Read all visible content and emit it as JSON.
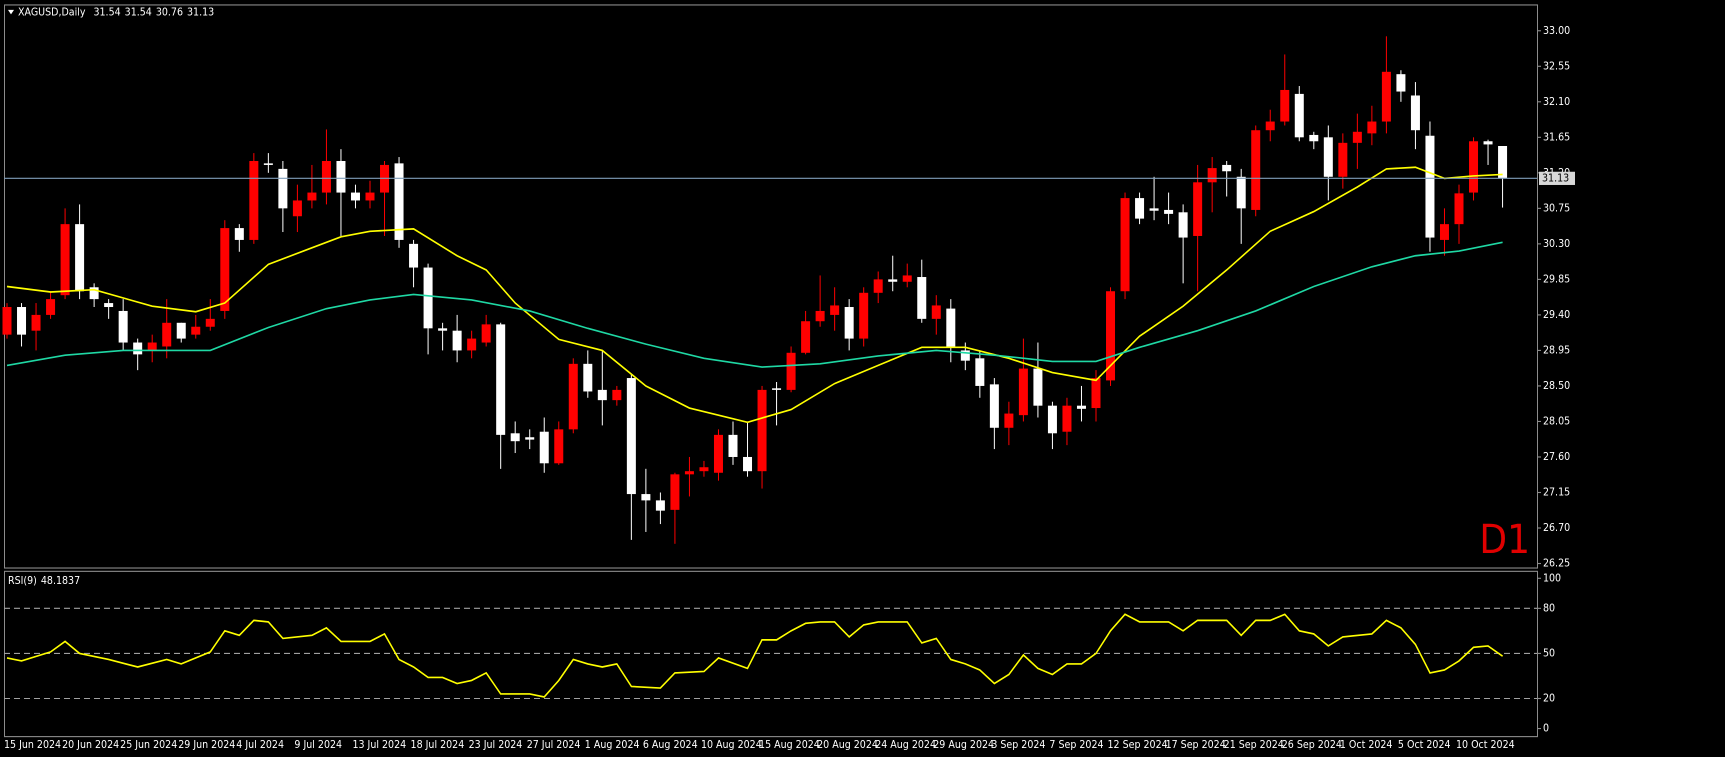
{
  "chart_data": [
    {
      "type": "candlestick",
      "title": "XAGUSD,Daily",
      "header_values": [
        31.54,
        31.54,
        30.76,
        31.13
      ],
      "watermark": "D1",
      "categories": [
        "15 Jun 2024",
        null,
        null,
        null,
        "20 Jun 2024",
        null,
        null,
        null,
        "25 Jun 2024",
        null,
        null,
        null,
        "29 Jun 2024",
        null,
        null,
        null,
        "4 Jul 2024",
        null,
        null,
        null,
        "9 Jul 2024",
        null,
        null,
        null,
        "13 Jul 2024",
        null,
        null,
        null,
        "18 Jul 2024",
        null,
        null,
        null,
        "23 Jul 2024",
        null,
        null,
        null,
        "27 Jul 2024",
        null,
        null,
        null,
        "1 Aug 2024",
        null,
        null,
        null,
        "6 Aug 2024",
        null,
        null,
        null,
        "10 Aug 2024",
        null,
        null,
        null,
        "15 Aug 2024",
        null,
        null,
        null,
        "20 Aug 2024",
        null,
        null,
        null,
        "24 Aug 2024",
        null,
        null,
        null,
        "29 Aug 2024",
        null,
        null,
        null,
        "3 Sep 2024",
        null,
        null,
        null,
        "7 Sep 2024",
        null,
        null,
        null,
        "12 Sep 2024",
        null,
        null,
        null,
        "17 Sep 2024",
        null,
        null,
        null,
        "21 Sep 2024",
        null,
        null,
        null,
        "26 Sep 2024",
        null,
        null,
        null,
        "1 Oct 2024",
        null,
        null,
        null,
        "5 Oct 2024",
        null,
        null,
        null,
        "10 Oct 2024",
        null,
        null,
        null
      ],
      "open": [
        29.15,
        29.5,
        29.2,
        29.4,
        29.65,
        30.55,
        29.75,
        29.55,
        29.45,
        29.05,
        28.95,
        29.0,
        29.3,
        29.15,
        29.25,
        29.45,
        30.5,
        30.35,
        31.32,
        31.25,
        30.65,
        30.85,
        30.95,
        31.35,
        30.95,
        30.85,
        30.95,
        31.32,
        30.3,
        30.0,
        29.23,
        29.2,
        28.95,
        29.05,
        29.28,
        27.9,
        27.85,
        27.92,
        27.52,
        27.95,
        28.78,
        28.45,
        28.32,
        28.6,
        27.13,
        27.05,
        26.93,
        27.38,
        27.42,
        27.4,
        27.88,
        27.6,
        27.42,
        28.47,
        28.45,
        28.92,
        29.32,
        29.4,
        29.5,
        29.1,
        29.68,
        29.85,
        29.82,
        29.88,
        29.35,
        29.48,
        28.95,
        28.85,
        28.52,
        27.97,
        28.13,
        28.72,
        28.25,
        27.92,
        28.25,
        28.22,
        28.57,
        29.7,
        30.88,
        30.75,
        30.73,
        30.7,
        30.4,
        31.08,
        31.3,
        31.15,
        30.73,
        31.74,
        31.85,
        32.2,
        31.68,
        31.65,
        31.15,
        31.58,
        31.7,
        31.85,
        32.45,
        32.18,
        31.67,
        30.35,
        30.55,
        30.95,
        31.6,
        31.54
      ],
      "high": [
        29.55,
        29.55,
        29.55,
        29.7,
        30.75,
        30.8,
        29.8,
        29.6,
        29.6,
        29.1,
        29.15,
        29.6,
        29.3,
        29.4,
        29.6,
        30.6,
        30.55,
        31.45,
        31.45,
        31.35,
        31.05,
        31.3,
        31.75,
        31.5,
        31.05,
        31.1,
        31.35,
        31.4,
        30.35,
        30.05,
        29.3,
        29.4,
        29.2,
        29.4,
        29.3,
        28.05,
        27.95,
        28.1,
        28.05,
        28.85,
        28.95,
        28.95,
        28.5,
        28.65,
        27.45,
        27.15,
        27.4,
        27.6,
        27.55,
        27.95,
        28.05,
        28.05,
        28.5,
        28.55,
        29.0,
        29.45,
        29.9,
        29.75,
        29.6,
        29.75,
        29.95,
        30.15,
        30.05,
        30.1,
        29.65,
        29.6,
        29.05,
        28.95,
        28.6,
        28.3,
        29.1,
        29.05,
        28.3,
        28.35,
        28.5,
        28.7,
        29.75,
        30.95,
        30.95,
        31.15,
        30.95,
        30.8,
        31.3,
        31.4,
        31.35,
        31.25,
        31.8,
        32.0,
        32.7,
        32.3,
        31.72,
        31.8,
        31.7,
        31.95,
        32.05,
        32.93,
        32.5,
        32.35,
        31.85,
        30.75,
        31.05,
        31.65,
        31.62,
        31.54
      ],
      "low": [
        29.1,
        29.0,
        28.95,
        29.35,
        29.6,
        29.6,
        29.5,
        29.35,
        28.95,
        28.7,
        28.8,
        28.85,
        29.05,
        29.1,
        29.2,
        29.35,
        30.2,
        30.3,
        31.2,
        30.45,
        30.45,
        30.75,
        30.8,
        30.4,
        30.75,
        30.75,
        30.4,
        30.25,
        29.75,
        28.9,
        28.95,
        28.8,
        28.85,
        29.0,
        27.45,
        27.65,
        27.7,
        27.4,
        27.5,
        27.9,
        28.35,
        28.0,
        28.25,
        26.55,
        26.65,
        26.75,
        26.5,
        27.1,
        27.35,
        27.3,
        27.5,
        27.35,
        27.2,
        28.0,
        28.42,
        28.9,
        29.25,
        29.2,
        28.95,
        29.0,
        29.55,
        29.7,
        29.75,
        29.3,
        29.15,
        28.8,
        28.7,
        28.35,
        27.7,
        27.75,
        28.05,
        28.1,
        27.7,
        27.75,
        28.05,
        28.05,
        28.5,
        29.6,
        30.55,
        30.6,
        30.55,
        29.8,
        29.7,
        30.7,
        30.9,
        30.3,
        30.65,
        31.6,
        31.8,
        31.6,
        31.5,
        30.85,
        31.0,
        31.25,
        31.55,
        31.7,
        32.1,
        31.5,
        30.2,
        30.15,
        30.3,
        30.85,
        31.3,
        30.76
      ],
      "close": [
        29.5,
        29.15,
        29.4,
        29.6,
        30.55,
        29.7,
        29.6,
        29.5,
        29.05,
        28.9,
        29.05,
        29.3,
        29.1,
        29.25,
        29.35,
        30.5,
        30.35,
        31.35,
        31.3,
        30.75,
        30.85,
        30.95,
        31.35,
        30.95,
        30.85,
        30.95,
        31.3,
        30.35,
        30.0,
        29.23,
        29.2,
        28.95,
        29.1,
        29.28,
        27.88,
        27.8,
        27.82,
        27.52,
        27.95,
        28.78,
        28.43,
        28.32,
        28.45,
        27.13,
        27.05,
        26.92,
        27.38,
        27.42,
        27.47,
        27.88,
        27.6,
        27.42,
        28.45,
        28.45,
        28.92,
        29.32,
        29.45,
        29.52,
        29.1,
        29.68,
        29.85,
        29.82,
        29.9,
        29.35,
        29.52,
        29.0,
        28.82,
        28.5,
        27.97,
        28.15,
        28.72,
        28.25,
        27.9,
        28.25,
        28.21,
        28.6,
        29.7,
        30.88,
        30.62,
        30.72,
        30.68,
        30.38,
        31.08,
        31.26,
        31.22,
        30.75,
        31.74,
        31.85,
        32.25,
        31.65,
        31.6,
        31.15,
        31.58,
        31.72,
        31.85,
        32.48,
        32.23,
        31.74,
        30.38,
        30.55,
        30.94,
        31.6,
        31.56,
        31.13
      ],
      "up_color": "#ff0000",
      "down_color": "#ffffff",
      "series": [
        {
          "color": "#ffff00",
          "x": [
            0,
            3,
            6,
            10,
            13,
            15,
            18,
            21,
            23,
            25,
            28,
            31,
            33,
            35,
            38,
            41,
            44,
            47,
            51,
            54,
            57,
            60,
            63,
            66,
            69,
            72,
            75,
            78,
            81,
            84,
            87,
            90,
            93,
            95,
            97,
            99,
            101,
            103
          ],
          "values": [
            29.76,
            29.69,
            29.72,
            29.51,
            29.44,
            29.55,
            30.04,
            30.25,
            30.39,
            30.46,
            30.49,
            30.15,
            29.97,
            29.55,
            29.09,
            28.95,
            28.5,
            28.22,
            28.04,
            28.2,
            28.53,
            28.76,
            28.99,
            28.99,
            28.85,
            28.67,
            28.57,
            29.13,
            29.51,
            29.97,
            30.46,
            30.71,
            31.02,
            31.25,
            31.27,
            31.13,
            31.16,
            31.18
          ]
        },
        {
          "color": "#1fd8a4",
          "x": [
            0,
            4,
            8,
            14,
            18,
            22,
            25,
            28,
            32,
            36,
            40,
            44,
            48,
            52,
            56,
            60,
            64,
            68,
            72,
            75,
            78,
            82,
            86,
            90,
            94,
            97,
            100,
            103
          ],
          "values": [
            28.76,
            28.89,
            28.95,
            28.95,
            29.24,
            29.48,
            29.59,
            29.66,
            29.59,
            29.45,
            29.23,
            29.03,
            28.85,
            28.74,
            28.78,
            28.88,
            28.95,
            28.89,
            28.81,
            28.81,
            28.99,
            29.2,
            29.45,
            29.76,
            30.01,
            30.15,
            30.21,
            30.32
          ]
        }
      ],
      "ylim": [
        26.2,
        33.32
      ],
      "yticks": [
        26.25,
        {
          "value": 26.7,
          "label": "26.70"
        },
        27.15,
        {
          "value": 27.6,
          "label": "27.60"
        },
        28.05,
        {
          "value": 28.5,
          "label": "28.50"
        },
        28.95,
        {
          "value": 29.4,
          "label": "29.40"
        },
        29.85,
        {
          "value": 30.3,
          "label": "30.30"
        },
        30.75,
        {
          "value": 31.2,
          "label": "31.20"
        },
        31.65,
        {
          "value": 32.1,
          "label": "32.10"
        },
        32.55,
        {
          "value": 33,
          "label": "33.00"
        }
      ]
    },
    {
      "type": "line",
      "title": "RSI(9)",
      "title_value": 48.1837,
      "color": "#ffff00",
      "x": [
        0,
        1,
        3,
        4,
        5,
        7,
        9,
        11,
        12,
        14,
        15,
        16,
        17,
        18,
        19,
        21,
        22,
        23,
        25,
        26,
        27,
        28,
        29,
        30,
        31,
        32,
        33,
        34,
        36,
        37,
        38,
        39,
        40,
        41,
        42,
        43,
        45,
        46,
        48,
        49,
        51,
        52,
        53,
        54,
        55,
        56,
        57,
        58,
        59,
        60,
        62,
        63,
        64,
        65,
        66,
        67,
        68,
        69,
        70,
        71,
        72,
        73,
        74,
        75,
        76,
        77,
        78,
        80,
        81,
        82,
        83,
        84,
        85,
        86,
        87,
        88,
        89,
        90,
        91,
        92,
        94,
        95,
        96,
        97,
        98,
        99,
        100,
        101,
        102,
        103
      ],
      "values": [
        47,
        45,
        51,
        58,
        50,
        46,
        41,
        46,
        43,
        51,
        65,
        62,
        72,
        71,
        60,
        62,
        67,
        58,
        58,
        63,
        46,
        41,
        34,
        34,
        30,
        32,
        37,
        23,
        23,
        21,
        32,
        46,
        43,
        41,
        43,
        28,
        27,
        37,
        38,
        47,
        40,
        59,
        59,
        65,
        70,
        71,
        71,
        61,
        69,
        71,
        71,
        57,
        60,
        46,
        43,
        39,
        30,
        36,
        49,
        40,
        36,
        43,
        43,
        50,
        65,
        76,
        71,
        71,
        65,
        72,
        72,
        72,
        62,
        72,
        72,
        76,
        65,
        63,
        55,
        61,
        63,
        72,
        67,
        56,
        37,
        39,
        45,
        54,
        55,
        48.1837
      ],
      "ylim": [
        -5,
        105
      ],
      "yticks": [
        0,
        20,
        50,
        80,
        100
      ],
      "levels": [
        20,
        50,
        80
      ]
    }
  ]
}
